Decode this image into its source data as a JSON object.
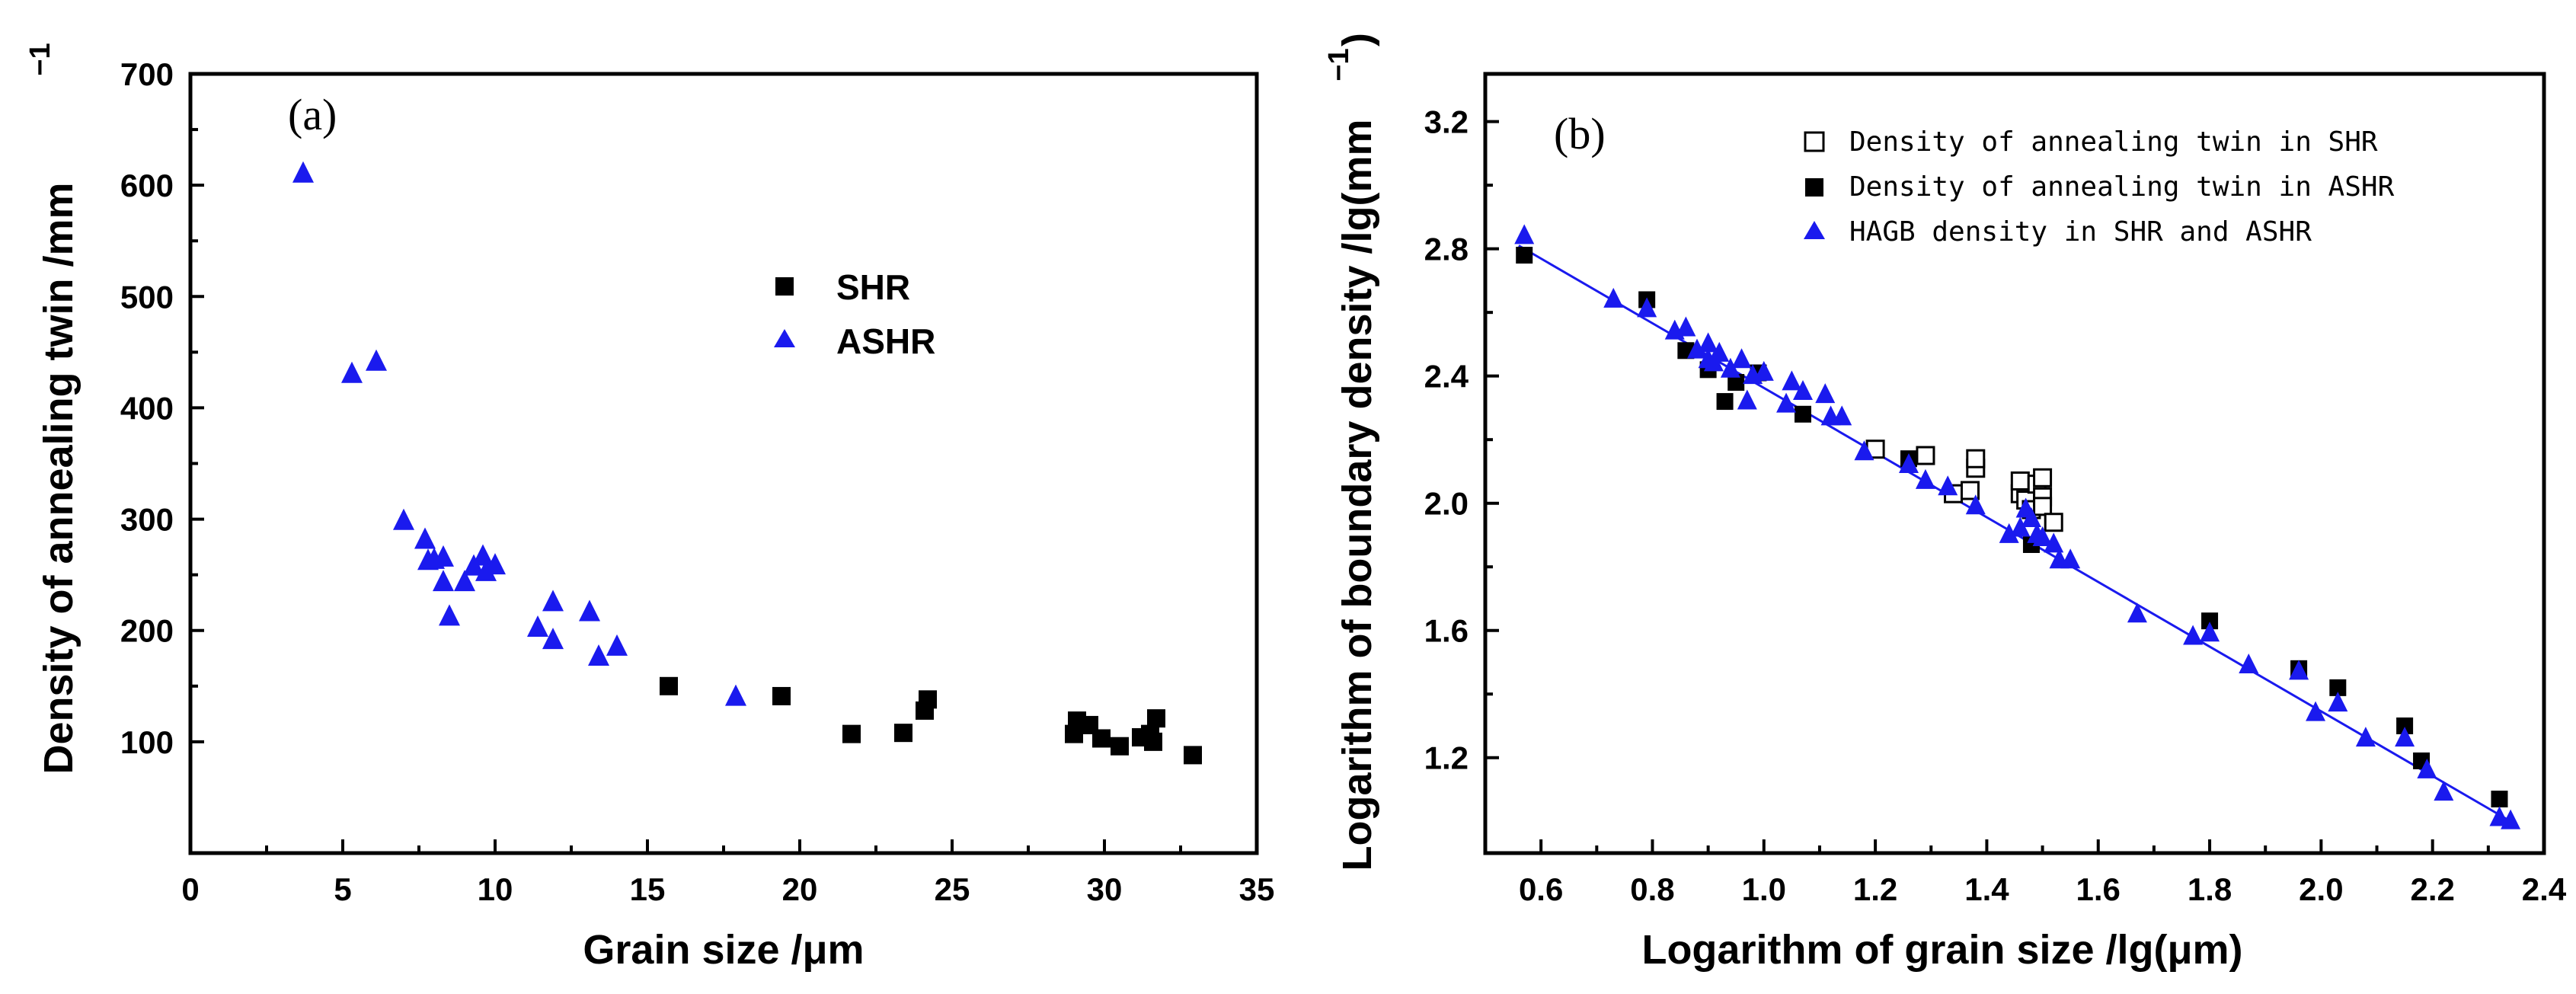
{
  "chart_data": [
    {
      "type": "scatter",
      "panel_label": "(a)",
      "xlabel": "Grain size /μm",
      "ylabel": "Density of annealing twin /mm",
      "ylabel_sup": "−1",
      "xlim": [
        0,
        35
      ],
      "ylim": [
        0,
        700
      ],
      "xticks": [
        0,
        5,
        10,
        15,
        20,
        25,
        30,
        35
      ],
      "yticks": [
        100,
        200,
        300,
        400,
        500,
        600,
        700
      ],
      "xtick_labels": [
        "0",
        "5",
        "10",
        "15",
        "20",
        "25",
        "30",
        "35"
      ],
      "ytick_labels": [
        "100",
        "200",
        "300",
        "400",
        "500",
        "600",
        "700"
      ],
      "legend_position": "center-right",
      "series": [
        {
          "name": "SHR",
          "marker": "square-filled",
          "color": "#000000",
          "points": [
            [
              15.7,
              150
            ],
            [
              19.4,
              141
            ],
            [
              21.7,
              107
            ],
            [
              23.4,
              108
            ],
            [
              24.1,
              128
            ],
            [
              24.2,
              138
            ],
            [
              29.0,
              107
            ],
            [
              29.1,
              119
            ],
            [
              29.5,
              115
            ],
            [
              29.9,
              103
            ],
            [
              30.5,
              96
            ],
            [
              31.2,
              104
            ],
            [
              31.5,
              107
            ],
            [
              31.6,
              100
            ],
            [
              31.7,
              121
            ],
            [
              32.9,
              88
            ]
          ]
        },
        {
          "name": "ASHR",
          "marker": "triangle-filled",
          "color": "#1a1aee",
          "points": [
            [
              3.7,
              610
            ],
            [
              5.3,
              430
            ],
            [
              6.1,
              441
            ],
            [
              7.0,
              298
            ],
            [
              7.7,
              281
            ],
            [
              7.8,
              262
            ],
            [
              8.0,
              263
            ],
            [
              8.3,
              265
            ],
            [
              8.3,
              243
            ],
            [
              8.5,
              212
            ],
            [
              9.0,
              243
            ],
            [
              9.3,
              257
            ],
            [
              9.6,
              266
            ],
            [
              9.7,
              252
            ],
            [
              10.0,
              258
            ],
            [
              11.4,
              202
            ],
            [
              11.9,
              225
            ],
            [
              11.9,
              191
            ],
            [
              13.1,
              216
            ],
            [
              13.4,
              176
            ],
            [
              14.0,
              185
            ],
            [
              17.9,
              140
            ]
          ]
        }
      ]
    },
    {
      "type": "scatter",
      "panel_label": "(b)",
      "xlabel": "Logarithm of grain size /lg(μm)",
      "ylabel": "Logarithm of boundary density /lg(mm",
      "ylabel_sup": "−1",
      "ylabel_close": ")",
      "xlim": [
        0.5,
        2.4
      ],
      "ylim": [
        0.9,
        3.35
      ],
      "xticks": [
        0.6,
        0.8,
        1.0,
        1.2,
        1.4,
        1.6,
        1.8,
        2.0,
        2.2,
        2.4
      ],
      "yticks": [
        1.2,
        1.6,
        2.0,
        2.4,
        2.8,
        3.2
      ],
      "xtick_labels": [
        "0.6",
        "0.8",
        "1.0",
        "1.2",
        "1.4",
        "1.6",
        "1.8",
        "2.0",
        "2.2",
        "2.4"
      ],
      "ytick_labels": [
        "1.2",
        "1.6",
        "2.0",
        "2.4",
        "2.8",
        "3.2"
      ],
      "legend_position": "top-right",
      "fit_line": {
        "x": [
          0.56,
          2.34
        ],
        "y": [
          2.81,
          1.0
        ],
        "color": "#1a1aee"
      },
      "series": [
        {
          "name": "Density of annealing twin in SHR",
          "marker": "square-open",
          "color": "#000000",
          "points": [
            [
              1.2,
              2.17
            ],
            [
              1.29,
              2.15
            ],
            [
              1.34,
              2.03
            ],
            [
              1.37,
              2.04
            ],
            [
              1.38,
              2.11
            ],
            [
              1.38,
              2.14
            ],
            [
              1.46,
              2.03
            ],
            [
              1.46,
              2.07
            ],
            [
              1.47,
              2.01
            ],
            [
              1.48,
              1.98
            ],
            [
              1.49,
              2.06
            ],
            [
              1.5,
              2.02
            ],
            [
              1.5,
              2.08
            ],
            [
              1.5,
              1.99
            ],
            [
              1.52,
              1.94
            ]
          ]
        },
        {
          "name": "Density of annealing twin in ASHR",
          "marker": "square-filled",
          "color": "#000000",
          "points": [
            [
              0.57,
              2.78
            ],
            [
              0.79,
              2.64
            ],
            [
              0.86,
              2.48
            ],
            [
              0.9,
              2.42
            ],
            [
              0.93,
              2.32
            ],
            [
              0.95,
              2.38
            ],
            [
              0.99,
              2.41
            ],
            [
              1.07,
              2.28
            ],
            [
              1.26,
              2.14
            ],
            [
              1.48,
              1.87
            ],
            [
              1.8,
              1.63
            ],
            [
              1.96,
              1.48
            ],
            [
              2.03,
              1.42
            ],
            [
              2.15,
              1.3
            ],
            [
              2.18,
              1.19
            ],
            [
              2.32,
              1.07
            ]
          ]
        },
        {
          "name": "HAGB density in SHR and ASHR",
          "marker": "triangle-filled",
          "color": "#1a1aee",
          "points": [
            [
              0.57,
              2.84
            ],
            [
              0.73,
              2.64
            ],
            [
              0.79,
              2.61
            ],
            [
              0.84,
              2.54
            ],
            [
              0.86,
              2.55
            ],
            [
              0.88,
              2.48
            ],
            [
              0.9,
              2.5
            ],
            [
              0.9,
              2.45
            ],
            [
              0.91,
              2.44
            ],
            [
              0.92,
              2.47
            ],
            [
              0.94,
              2.42
            ],
            [
              0.96,
              2.45
            ],
            [
              0.97,
              2.32
            ],
            [
              0.98,
              2.4
            ],
            [
              1.0,
              2.41
            ],
            [
              1.04,
              2.31
            ],
            [
              1.05,
              2.38
            ],
            [
              1.07,
              2.35
            ],
            [
              1.11,
              2.34
            ],
            [
              1.12,
              2.27
            ],
            [
              1.14,
              2.27
            ],
            [
              1.18,
              2.16
            ],
            [
              1.26,
              2.12
            ],
            [
              1.29,
              2.07
            ],
            [
              1.33,
              2.05
            ],
            [
              1.38,
              1.99
            ],
            [
              1.44,
              1.9
            ],
            [
              1.46,
              1.92
            ],
            [
              1.47,
              1.98
            ],
            [
              1.48,
              1.95
            ],
            [
              1.49,
              1.9
            ],
            [
              1.5,
              1.89
            ],
            [
              1.52,
              1.87
            ],
            [
              1.53,
              1.82
            ],
            [
              1.55,
              1.82
            ],
            [
              1.67,
              1.65
            ],
            [
              1.77,
              1.58
            ],
            [
              1.8,
              1.59
            ],
            [
              1.87,
              1.49
            ],
            [
              1.96,
              1.47
            ],
            [
              1.99,
              1.34
            ],
            [
              2.03,
              1.37
            ],
            [
              2.08,
              1.26
            ],
            [
              2.15,
              1.26
            ],
            [
              2.19,
              1.16
            ],
            [
              2.22,
              1.09
            ],
            [
              2.32,
              1.01
            ],
            [
              2.34,
              1.0
            ]
          ]
        }
      ]
    }
  ]
}
